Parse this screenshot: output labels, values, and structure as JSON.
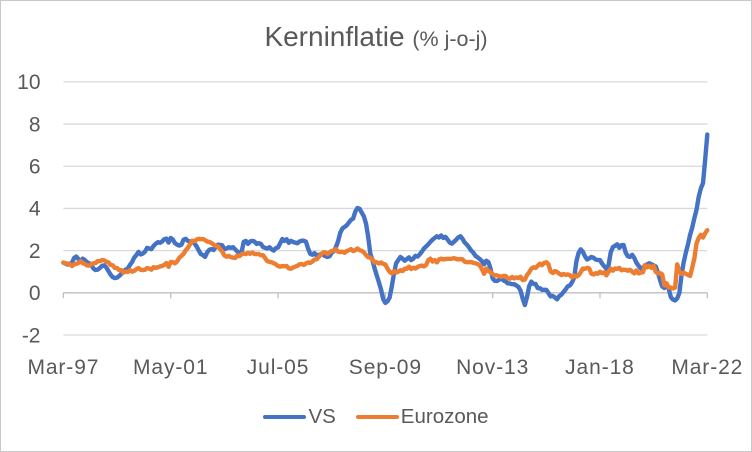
{
  "chart_data": {
    "type": "line",
    "title": "Kerninflatie",
    "title_suffix": "(% j-o-j)",
    "x_tick_labels": [
      "Mar-97",
      "May-01",
      "Jul-05",
      "Sep-09",
      "Nov-13",
      "Jan-18",
      "Mar-22"
    ],
    "x_tick_months": [
      0,
      50,
      100,
      150,
      200,
      250,
      300
    ],
    "x_range_months": [
      0,
      300
    ],
    "y_ticks": [
      -2,
      0,
      2,
      4,
      6,
      8,
      10
    ],
    "ylim": [
      -2,
      10
    ],
    "grid": "horizontal",
    "legend_position": "bottom",
    "series": [
      {
        "name": "VS",
        "color": "#4472C4",
        "values": [
          1.43,
          1.38,
          1.34,
          1.38,
          1.43,
          1.65,
          1.72,
          1.6,
          1.5,
          1.62,
          1.55,
          1.45,
          1.4,
          1.32,
          1.15,
          1.08,
          1.1,
          1.18,
          1.28,
          1.3,
          1.2,
          1.03,
          0.86,
          0.74,
          0.7,
          0.72,
          0.8,
          0.9,
          1.0,
          1.1,
          1.15,
          1.32,
          1.46,
          1.67,
          1.79,
          1.94,
          1.82,
          1.86,
          1.95,
          2.13,
          2.1,
          2.07,
          2.22,
          2.32,
          2.4,
          2.37,
          2.43,
          2.54,
          2.57,
          2.38,
          2.6,
          2.52,
          2.35,
          2.28,
          2.24,
          2.28,
          2.52,
          2.56,
          2.46,
          2.43,
          2.43,
          2.35,
          2.21,
          2.02,
          1.84,
          1.79,
          1.7,
          1.92,
          2.04,
          2.07,
          2.03,
          2.18,
          2.28,
          2.27,
          2.25,
          2.07,
          2.1,
          2.16,
          2.13,
          2.16,
          2.06,
          1.96,
          1.89,
          1.92,
          2.42,
          2.46,
          2.32,
          2.43,
          2.46,
          2.43,
          2.32,
          2.35,
          2.32,
          2.17,
          2.13,
          2.1,
          2.16,
          2.06,
          2.0,
          2.12,
          2.15,
          2.35,
          2.55,
          2.46,
          2.54,
          2.37,
          2.46,
          2.41,
          2.38,
          2.35,
          2.43,
          2.47,
          2.47,
          2.42,
          2.1,
          1.85,
          1.8,
          1.88,
          1.77,
          1.8,
          1.83,
          1.8,
          1.74,
          1.7,
          1.73,
          1.9,
          1.97,
          2.17,
          2.45,
          2.85,
          3.05,
          3.12,
          3.2,
          3.33,
          3.46,
          3.52,
          3.85,
          4.02,
          3.98,
          3.8,
          3.62,
          3.28,
          2.65,
          1.85,
          1.55,
          1.15,
          0.82,
          0.5,
          0.15,
          -0.3,
          -0.48,
          -0.4,
          -0.22,
          0.3,
          0.9,
          1.39,
          1.55,
          1.7,
          1.62,
          1.52,
          1.6,
          1.68,
          1.55,
          1.62,
          1.75,
          1.72,
          1.82,
          1.95,
          2.1,
          2.2,
          2.3,
          2.42,
          2.52,
          2.6,
          2.68,
          2.62,
          2.72,
          2.6,
          2.65,
          2.52,
          2.38,
          2.33,
          2.42,
          2.52,
          2.63,
          2.68,
          2.55,
          2.38,
          2.28,
          2.15,
          2.0,
          1.9,
          1.75,
          1.68,
          1.6,
          1.5,
          1.35,
          1.52,
          1.46,
          1.15,
          0.68,
          0.57,
          0.56,
          0.62,
          0.69,
          0.59,
          0.54,
          0.45,
          0.44,
          0.41,
          0.41,
          0.35,
          0.28,
          0.1,
          -0.28,
          -0.58,
          -0.2,
          0.31,
          0.53,
          0.42,
          0.42,
          0.22,
          0.22,
          0.14,
          0.14,
          0.14,
          -0.01,
          -0.17,
          -0.15,
          -0.22,
          -0.31,
          -0.16,
          -0.09,
          0.04,
          0.16,
          0.31,
          0.35,
          0.5,
          0.73,
          1.48,
          1.88,
          2.06,
          1.95,
          1.73,
          1.58,
          1.63,
          1.7,
          1.66,
          1.58,
          1.55,
          1.55,
          1.38,
          1.25,
          1.14,
          1.31,
          1.92,
          2.16,
          2.23,
          2.3,
          2.13,
          2.26,
          2.26,
          1.9,
          1.73,
          1.7,
          1.8,
          1.65,
          1.42,
          1.28,
          1.16,
          1.17,
          1.3,
          1.35,
          1.4,
          1.35,
          1.3,
          1.25,
          0.95,
          0.6,
          0.3,
          0.23,
          0.35,
          0.2,
          -0.2,
          -0.32,
          -0.36,
          -0.26,
          0.0,
          0.85,
          1.45,
          1.9,
          2.3,
          2.75,
          3.1,
          3.55,
          3.95,
          4.55,
          4.95,
          5.2,
          6.3,
          7.5
        ]
      },
      {
        "name": "Eurozone",
        "color": "#ED7D31",
        "values": [
          1.43,
          1.4,
          1.38,
          1.36,
          1.27,
          1.35,
          1.37,
          1.42,
          1.5,
          1.41,
          1.37,
          1.3,
          1.29,
          1.35,
          1.4,
          1.41,
          1.5,
          1.5,
          1.55,
          1.54,
          1.47,
          1.44,
          1.32,
          1.3,
          1.18,
          1.17,
          1.07,
          1.08,
          0.96,
          1.01,
          0.99,
          1.07,
          1.0,
          1.04,
          1.12,
          1.17,
          1.09,
          1.08,
          1.09,
          1.17,
          1.15,
          1.1,
          1.21,
          1.18,
          1.21,
          1.25,
          1.27,
          1.33,
          1.41,
          1.23,
          1.46,
          1.45,
          1.4,
          1.5,
          1.66,
          1.75,
          1.85,
          2.02,
          2.13,
          2.3,
          2.47,
          2.44,
          2.52,
          2.56,
          2.54,
          2.55,
          2.5,
          2.43,
          2.41,
          2.36,
          2.28,
          2.22,
          2.21,
          2.07,
          1.96,
          1.77,
          1.71,
          1.75,
          1.69,
          1.67,
          1.65,
          1.77,
          1.74,
          1.82,
          1.86,
          1.84,
          1.89,
          1.85,
          1.91,
          1.84,
          1.83,
          1.84,
          1.78,
          1.78,
          1.64,
          1.5,
          1.47,
          1.45,
          1.4,
          1.35,
          1.27,
          1.24,
          1.27,
          1.26,
          1.27,
          1.16,
          1.14,
          1.2,
          1.24,
          1.28,
          1.35,
          1.36,
          1.32,
          1.39,
          1.44,
          1.42,
          1.48,
          1.58,
          1.59,
          1.7,
          1.82,
          1.91,
          1.92,
          1.84,
          1.92,
          1.98,
          2.0,
          2.07,
          1.95,
          1.93,
          1.95,
          1.9,
          1.98,
          2.01,
          2.07,
          1.98,
          2.02,
          2.1,
          2.02,
          1.99,
          1.91,
          1.79,
          1.69,
          1.66,
          1.59,
          1.43,
          1.45,
          1.39,
          1.44,
          1.37,
          1.34,
          1.14,
          1.0,
          0.92,
          1.03,
          0.96,
          1.0,
          1.07,
          1.03,
          1.14,
          1.14,
          1.24,
          1.13,
          1.19,
          1.15,
          1.22,
          1.27,
          1.29,
          1.25,
          1.32,
          1.55,
          1.62,
          1.48,
          1.55,
          1.44,
          1.58,
          1.62,
          1.58,
          1.6,
          1.61,
          1.61,
          1.62,
          1.64,
          1.61,
          1.58,
          1.6,
          1.58,
          1.47,
          1.45,
          1.45,
          1.46,
          1.42,
          1.4,
          1.36,
          1.3,
          1.12,
          0.9,
          1.15,
          1.03,
          0.99,
          0.88,
          0.83,
          0.83,
          0.79,
          0.76,
          0.8,
          0.8,
          0.69,
          0.67,
          0.75,
          0.68,
          0.73,
          0.7,
          0.76,
          0.6,
          0.63,
          0.84,
          0.97,
          1.14,
          1.21,
          1.18,
          1.28,
          1.38,
          1.31,
          1.42,
          1.45,
          1.35,
          1.01,
          0.94,
          1.03,
          0.99,
          0.91,
          0.84,
          0.89,
          0.85,
          0.87,
          0.84,
          0.73,
          0.82,
          0.77,
          0.83,
          0.97,
          1.15,
          1.14,
          1.18,
          1.15,
          0.9,
          0.87,
          0.93,
          0.9,
          1.0,
          0.93,
          0.97,
          0.83,
          1.0,
          1.15,
          1.05,
          1.15,
          1.13,
          1.18,
          1.07,
          1.1,
          1.08,
          1.05,
          1.09,
          1.0,
          0.92,
          1.06,
          0.92,
          0.96,
          0.97,
          1.32,
          1.21,
          1.28,
          1.18,
          1.28,
          0.99,
          0.92,
          0.93,
          0.87,
          0.35,
          0.45,
          0.25,
          0.25,
          0.2,
          0.25,
          1.35,
          1.0,
          0.9,
          0.95,
          0.9,
          0.85,
          0.8,
          1.2,
          1.65,
          2.35,
          2.6,
          2.75,
          2.62,
          2.82,
          2.97
        ]
      }
    ]
  },
  "colors": {
    "text": "#595959",
    "gridline": "#D9D9D9",
    "axis_line": "#BFBFBF",
    "chart_border": "#C8C8C8",
    "background": "#FFFFFF",
    "series_vs": "#4472C4",
    "series_eurozone": "#ED7D31"
  },
  "legend": {
    "items": [
      {
        "label": "VS",
        "color": "#4472C4"
      },
      {
        "label": "Eurozone",
        "color": "#ED7D31"
      }
    ]
  }
}
